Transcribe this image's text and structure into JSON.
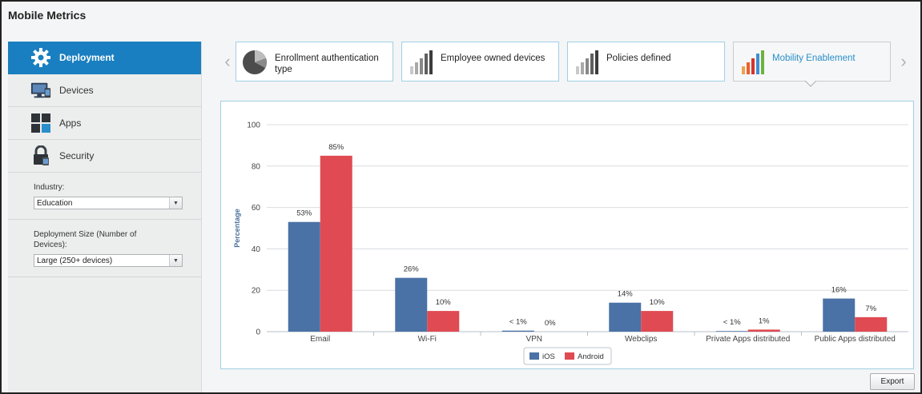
{
  "app": {
    "title": "Mobile Metrics"
  },
  "sidebar": {
    "items": [
      {
        "label": "Deployment",
        "icon": "gear-icon",
        "active": true
      },
      {
        "label": "Devices",
        "icon": "devices-icon",
        "active": false
      },
      {
        "label": "Apps",
        "icon": "apps-grid-icon",
        "active": false
      },
      {
        "label": "Security",
        "icon": "lock-icon",
        "active": false
      }
    ],
    "filters": {
      "industry_label": "Industry:",
      "industry_value": "Education",
      "size_label": "Deployment Size (Number of Devices):",
      "size_value": "Large (250+ devices)"
    }
  },
  "tabs": [
    {
      "label": "Enrollment authentication type",
      "icon": "pie-icon",
      "active": false
    },
    {
      "label": "Employee owned devices",
      "icon": "bar-gray-icon",
      "active": false
    },
    {
      "label": "Policies defined",
      "icon": "bar-gray-icon",
      "active": false
    },
    {
      "label": "Mobility Enablement",
      "icon": "bar-color-icon",
      "active": true
    }
  ],
  "colors": {
    "accent": "#1a7fc0",
    "ios": "#4a72a6",
    "android": "#e04a52",
    "active_tab_text": "#2a8fc9"
  },
  "chart_data": {
    "type": "bar",
    "categories": [
      "Email",
      "Wi-Fi",
      "VPN",
      "Webclips",
      "Private Apps distributed",
      "Public Apps distributed"
    ],
    "series": [
      {
        "name": "iOS",
        "values": [
          53,
          26,
          0.5,
          14,
          0.3,
          16
        ],
        "labels": [
          "53%",
          "26%",
          "< 1%",
          "14%",
          "< 1%",
          "16%"
        ]
      },
      {
        "name": "Android",
        "values": [
          85,
          10,
          0,
          10,
          1,
          7
        ],
        "labels": [
          "85%",
          "10%",
          "0%",
          "10%",
          "1%",
          "7%"
        ]
      }
    ],
    "ylabel": "Percentage",
    "ylim": [
      0,
      100
    ],
    "yticks": [
      "0",
      "20",
      "40",
      "60",
      "80",
      "100"
    ],
    "grid": true,
    "legend": "bottom-center"
  },
  "export_label": "Export"
}
